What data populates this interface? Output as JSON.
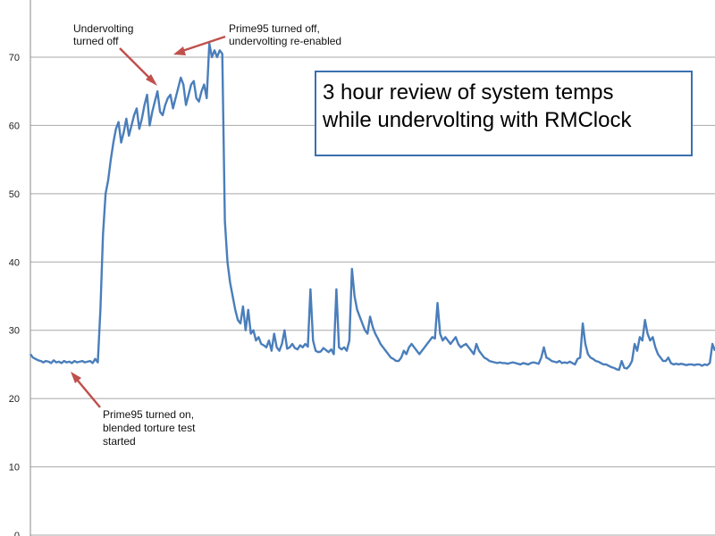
{
  "chart_data": {
    "type": "line",
    "title_lines": [
      "3 hour review of system temps",
      "while undervolting with RMClock"
    ],
    "xlabel": "",
    "ylabel": "",
    "ylim": [
      0,
      70
    ],
    "yticks": [
      "0",
      "10",
      "20",
      "30",
      "40",
      "50",
      "60",
      "70"
    ],
    "grid": true,
    "legend": "none",
    "colors": {
      "series": "#4a7ebb",
      "arrow": "#c0504d",
      "title_border": "#3c6fb0"
    },
    "series": [
      {
        "values": [
          26.5,
          26.0,
          25.8,
          25.6,
          25.5,
          25.3,
          25.5,
          25.4,
          25.2,
          25.6,
          25.3,
          25.4,
          25.2,
          25.5,
          25.3,
          25.4,
          25.2,
          25.5,
          25.3,
          25.4,
          25.5,
          25.3,
          25.4,
          25.5,
          25.2,
          25.8,
          25.3,
          33.0,
          44.0,
          50.0,
          52.0,
          55.0,
          57.5,
          59.5,
          60.5,
          57.5,
          59.0,
          61.0,
          58.5,
          60.0,
          61.5,
          62.5,
          59.5,
          61.0,
          63.0,
          64.5,
          60.0,
          62.0,
          63.5,
          65.0,
          62.0,
          61.5,
          63.0,
          64.0,
          64.5,
          62.5,
          64.0,
          65.5,
          67.0,
          66.0,
          63.0,
          64.5,
          66.0,
          66.5,
          64.0,
          63.5,
          65.0,
          66.0,
          64.0,
          72.0,
          70.0,
          71.0,
          70.0,
          71.0,
          70.5,
          46.0,
          40.0,
          37.0,
          35.0,
          33.0,
          31.5,
          31.0,
          33.5,
          30.0,
          33.0,
          29.5,
          30.0,
          28.5,
          29.0,
          28.0,
          27.8,
          27.5,
          28.5,
          27.0,
          29.5,
          27.5,
          27.0,
          28.0,
          30.0,
          27.3,
          27.5,
          28.0,
          27.4,
          27.2,
          27.8,
          27.5,
          28.0,
          27.6,
          36.0,
          28.5,
          27.0,
          26.8,
          26.9,
          27.4,
          27.1,
          26.8,
          27.2,
          26.5,
          36.0,
          27.5,
          27.2,
          27.5,
          27.0,
          28.5,
          39.0,
          35.0,
          33.0,
          32.0,
          31.0,
          30.0,
          29.5,
          32.0,
          30.5,
          29.5,
          28.8,
          28.0,
          27.5,
          27.0,
          26.5,
          26.0,
          25.8,
          25.5,
          25.5,
          26.0,
          27.0,
          26.5,
          27.5,
          28.0,
          27.5,
          27.0,
          26.5,
          27.0,
          27.5,
          28.0,
          28.5,
          29.0,
          28.8,
          34.0,
          29.5,
          28.5,
          29.0,
          28.5,
          28.0,
          28.5,
          29.0,
          28.0,
          27.5,
          27.8,
          28.0,
          27.5,
          27.0,
          26.5,
          28.0,
          27.0,
          26.5,
          26.0,
          25.8,
          25.5,
          25.4,
          25.3,
          25.2,
          25.3,
          25.2,
          25.2,
          25.1,
          25.2,
          25.3,
          25.2,
          25.1,
          25.0,
          25.2,
          25.1,
          25.0,
          25.2,
          25.3,
          25.2,
          25.1,
          26.0,
          27.5,
          26.0,
          25.8,
          25.5,
          25.4,
          25.3,
          25.5,
          25.2,
          25.3,
          25.2,
          25.4,
          25.2,
          25.0,
          25.8,
          26.0,
          31.0,
          28.0,
          26.5,
          26.0,
          25.8,
          25.5,
          25.4,
          25.2,
          25.0,
          25.0,
          24.8,
          24.6,
          24.5,
          24.3,
          24.2,
          25.5,
          24.5,
          24.4,
          24.8,
          25.5,
          28.0,
          27.0,
          29.0,
          28.5,
          31.5,
          29.5,
          28.5,
          29.0,
          27.5,
          26.5,
          26.0,
          25.5,
          25.5,
          26.0,
          25.2,
          25.0,
          25.1,
          25.0,
          25.1,
          25.0,
          24.9,
          25.0,
          25.0,
          24.9,
          25.0,
          25.0,
          24.8,
          25.0,
          24.9,
          25.2,
          28.0,
          27.0
        ]
      }
    ],
    "annotations": [
      {
        "lines": [
          "Undervolting",
          "turned off"
        ]
      },
      {
        "lines": [
          "Prime95 turned off,",
          "undervolting re-enabled"
        ]
      },
      {
        "lines": [
          "Prime95 turned on,",
          "blended torture test",
          "started"
        ]
      }
    ]
  }
}
